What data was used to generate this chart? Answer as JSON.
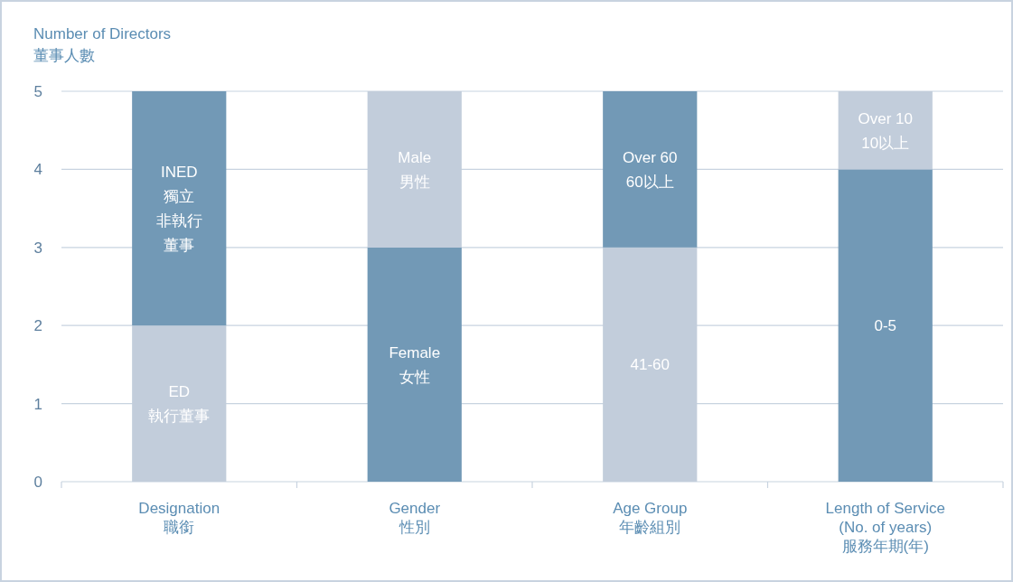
{
  "chart_data": {
    "type": "bar",
    "stacked": true,
    "ylabel": "Number of Directors\n董事人數",
    "categories": [
      "Designation\n職銜",
      "Gender\n性別",
      "Age Group\n年齡組別",
      "Length of Service\n(No. of years)\n服務年期(年)"
    ],
    "series": [
      {
        "values": [
          2,
          3,
          3,
          4
        ],
        "colors": [
          "#c2cddb",
          "#7299b6",
          "#c2cddb",
          "#7299b6"
        ],
        "value_labels": [
          "ED\n執行董事",
          "Female\n女性",
          "41-60",
          "0-5"
        ]
      },
      {
        "values": [
          3,
          2,
          2,
          1
        ],
        "colors": [
          "#7299b6",
          "#c2cddb",
          "#7299b6",
          "#c2cddb"
        ],
        "value_labels": [
          "INED\n獨立非執行董事",
          "Male\n男性",
          "Over 60\n60以上",
          "Over 10\n10以上"
        ]
      }
    ],
    "ylim": [
      0,
      5
    ],
    "yticks": [
      0,
      1,
      2,
      3,
      4,
      5
    ],
    "grid": "y"
  }
}
